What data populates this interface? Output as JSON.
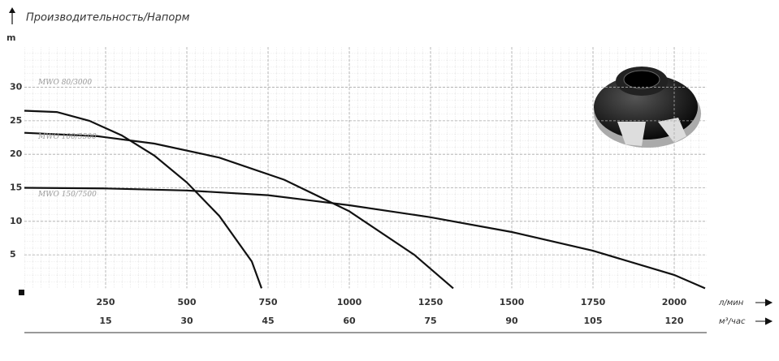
{
  "chart_data": {
    "type": "line",
    "title": "Производительность/Напорм",
    "y_label": "m",
    "x_label": "л/мин",
    "x2_label": "м³/час",
    "xlim": [
      0,
      2100
    ],
    "xticks": [
      250,
      500,
      750,
      1000,
      1250,
      1500,
      1750,
      2000
    ],
    "x2lim": [
      0,
      126
    ],
    "x2ticks": [
      15,
      30,
      45,
      60,
      75,
      90,
      105,
      120
    ],
    "ylim": [
      0,
      36
    ],
    "yticks": [
      5,
      10,
      15,
      20,
      25,
      30
    ],
    "grid": true,
    "series": [
      {
        "name": "MWO 80/3000",
        "color": "#111111",
        "x": [
          0,
          100,
          200,
          300,
          400,
          500,
          600,
          700,
          730
        ],
        "values": [
          26.5,
          26.3,
          25.0,
          22.8,
          19.8,
          15.8,
          10.8,
          4.0,
          0
        ]
      },
      {
        "name": "MWO 100/5500",
        "color": "#111111",
        "x": [
          0,
          225,
          400,
          600,
          800,
          1000,
          1200,
          1320
        ],
        "values": [
          23.2,
          22.7,
          21.6,
          19.5,
          16.2,
          11.5,
          5.0,
          0
        ]
      },
      {
        "name": "MWO 150/7500",
        "color": "#111111",
        "x": [
          0,
          250,
          500,
          750,
          1000,
          1250,
          1500,
          1750,
          2000,
          2095
        ],
        "values": [
          15.0,
          14.9,
          14.6,
          13.9,
          12.4,
          10.6,
          8.4,
          5.6,
          2.0,
          0
        ]
      }
    ]
  }
}
